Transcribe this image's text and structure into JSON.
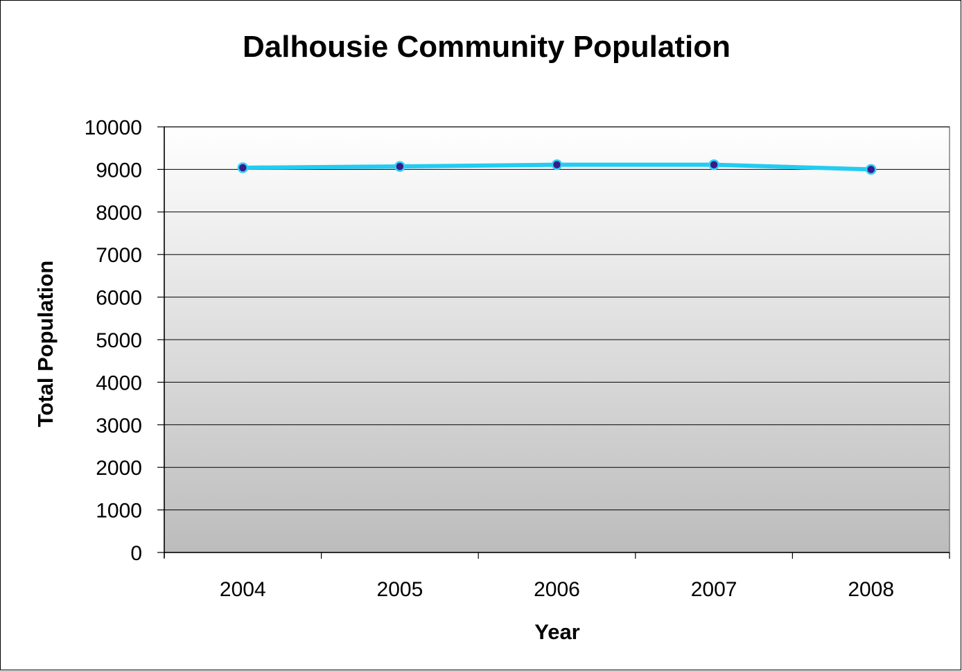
{
  "chart_data": {
    "type": "line",
    "title": "Dalhousie Community Population",
    "xlabel": "Year",
    "ylabel": "Total Population",
    "categories": [
      "2004",
      "2005",
      "2006",
      "2007",
      "2008"
    ],
    "series": [
      {
        "values": [
          9040,
          9070,
          9110,
          9110,
          9000
        ]
      }
    ],
    "ylim": [
      0,
      10000
    ],
    "yticks": [
      "0",
      "1000",
      "2000",
      "3000",
      "4000",
      "5000",
      "6000",
      "7000",
      "8000",
      "9000",
      "10000"
    ],
    "grid": true,
    "legend": "none",
    "colors": {
      "line": "#22ccf2",
      "marker_fill": "#3a1a8a",
      "marker_edge": "#2fd0f5",
      "plot_bg_top": "#ffffff",
      "plot_bg_bottom": "#bcbcbc",
      "grid": "#000000"
    }
  }
}
